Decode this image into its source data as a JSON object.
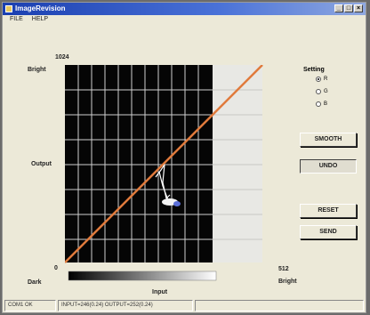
{
  "window": {
    "title": "ImageRevision"
  },
  "menu": {
    "items": [
      "FILE",
      "HELP"
    ]
  },
  "graph": {
    "top_value": "1024",
    "bright_label": "Bright",
    "output_label": "Output",
    "origin_label": "0",
    "dark_label": "Dark",
    "input_label": "Input",
    "max_value": "512",
    "bright_bottom_label": "Bright",
    "curve_color": "#e07a3c"
  },
  "setting": {
    "title": "Setting",
    "options": [
      "R",
      "G",
      "B"
    ],
    "selected_index": 0
  },
  "buttons": {
    "smooth": "SMOOTH",
    "undo": "UNDO",
    "reset": "RESET",
    "send": "SEND"
  },
  "status": {
    "left": "COM1 OK",
    "middle": "INPUT=246(0.24) OUTPUT=252(0.24)",
    "right": ""
  }
}
